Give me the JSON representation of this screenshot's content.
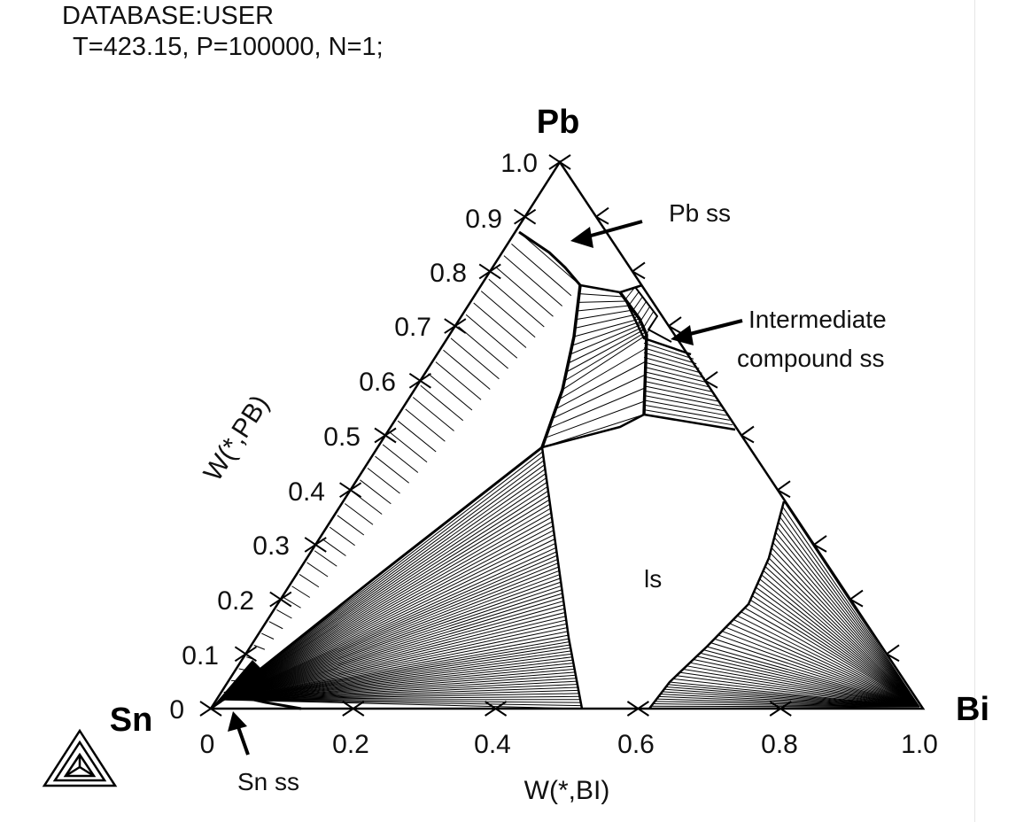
{
  "header": {
    "database": "DATABASE:USER",
    "conditions": "T=423.15, P=100000, N=1;"
  },
  "vertices": {
    "top": "Pb",
    "left": "Sn",
    "right": "Bi"
  },
  "axes": {
    "bottom_label": "W(*,BI)",
    "left_label": "W(*,PB)",
    "bottom_ticks": [
      "0",
      "0.2",
      "0.4",
      "0.6",
      "0.8",
      "1.0"
    ],
    "left_ticks": [
      "0",
      "0.1",
      "0.2",
      "0.3",
      "0.4",
      "0.5",
      "0.6",
      "0.7",
      "0.8",
      "0.9",
      "1.0"
    ]
  },
  "annotations": {
    "pb_ss": "Pb ss",
    "intermediate_line1": "Intermediate",
    "intermediate_line2": "compound ss",
    "ls": "ls",
    "sn_ss": "Sn ss"
  },
  "colors": {
    "ink": "#000000",
    "background": "#ffffff"
  },
  "icons": [
    "thermo-calc-logo-icon"
  ]
}
